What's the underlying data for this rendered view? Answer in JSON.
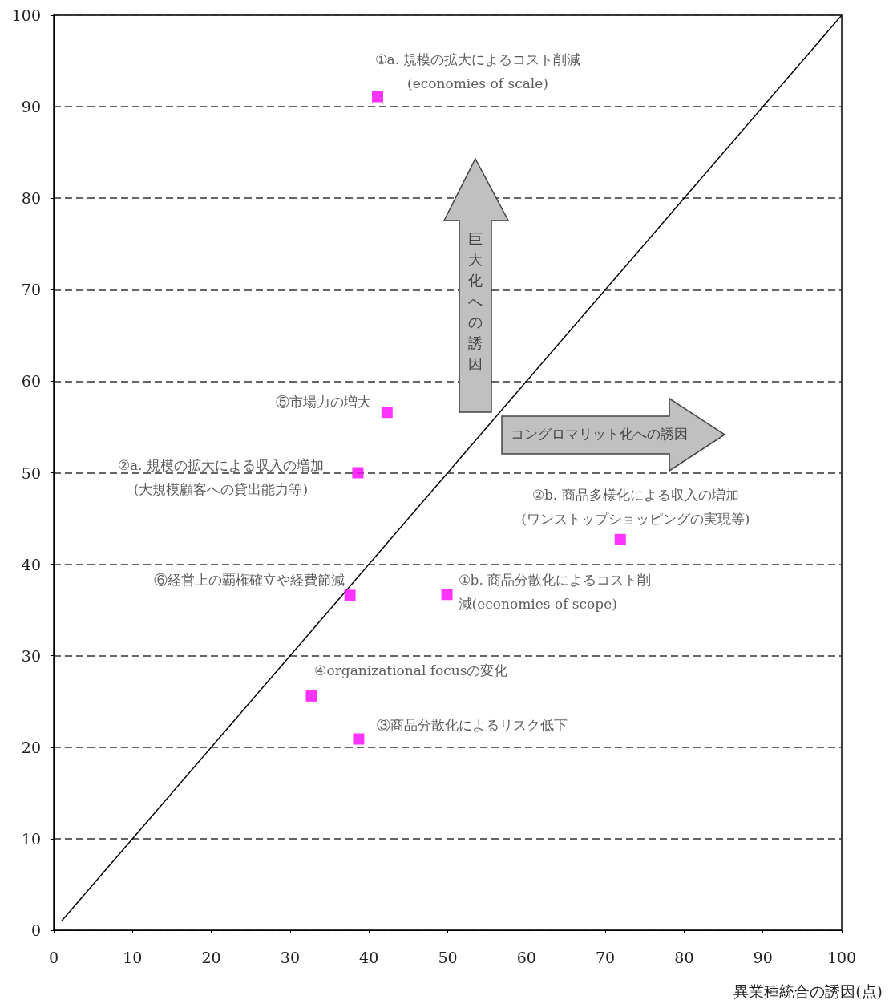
{
  "chart_data": {
    "type": "scatter",
    "xlabel": "異業種統合の誘因(点)",
    "xlim": [
      0,
      100
    ],
    "xticks": [
      0,
      10,
      20,
      30,
      40,
      50,
      60,
      70,
      80,
      90,
      100
    ],
    "ylim": [
      0,
      100
    ],
    "yticks": [
      0,
      10,
      20,
      30,
      40,
      50,
      60,
      70,
      80,
      90,
      100
    ],
    "grid": "y",
    "marker": "square",
    "series": [
      {
        "type": "scatter",
        "color": "#ff00ff",
        "x": [
          41.1,
          42.3,
          38.6,
          71.9,
          37.6,
          49.9,
          32.7,
          38.7
        ],
        "values": [
          91.1,
          56.6,
          50.0,
          42.7,
          36.6,
          36.7,
          25.6,
          20.9
        ]
      },
      {
        "type": "line",
        "color": "#000000",
        "marker": "none",
        "line_style": "solid",
        "x": [
          1,
          100
        ],
        "values": [
          1,
          100
        ]
      }
    ],
    "annotations": [
      {
        "text": "①a. 規模の拡大によるコスト削減\n(economies of scale)",
        "x": 41.1,
        "y": 91.1
      },
      {
        "text": "⑤市場力の増大",
        "x": 42.3,
        "y": 56.6
      },
      {
        "text": "②a. 規模の拡大による収入の増加\n(大規模顧客への貸出能力等)",
        "x": 38.6,
        "y": 50.0
      },
      {
        "text": "②b. 商品多様化による収入の増加\n(ワンストップショッピングの実現等)",
        "x": 71.9,
        "y": 42.7
      },
      {
        "text": "⑥経営上の覇権確立や経費節減",
        "x": 37.6,
        "y": 36.6
      },
      {
        "text": "①b. 商品分散化によるコスト削減(economies of scope)",
        "x": 49.9,
        "y": 36.7
      },
      {
        "text": "④organizational focusの変化",
        "x": 32.7,
        "y": 25.6
      },
      {
        "text": "③商品分散化によるリスク低下",
        "x": 38.7,
        "y": 20.9
      },
      "巨大化への誘因",
      "コングロマリット化への誘因"
    ]
  }
}
